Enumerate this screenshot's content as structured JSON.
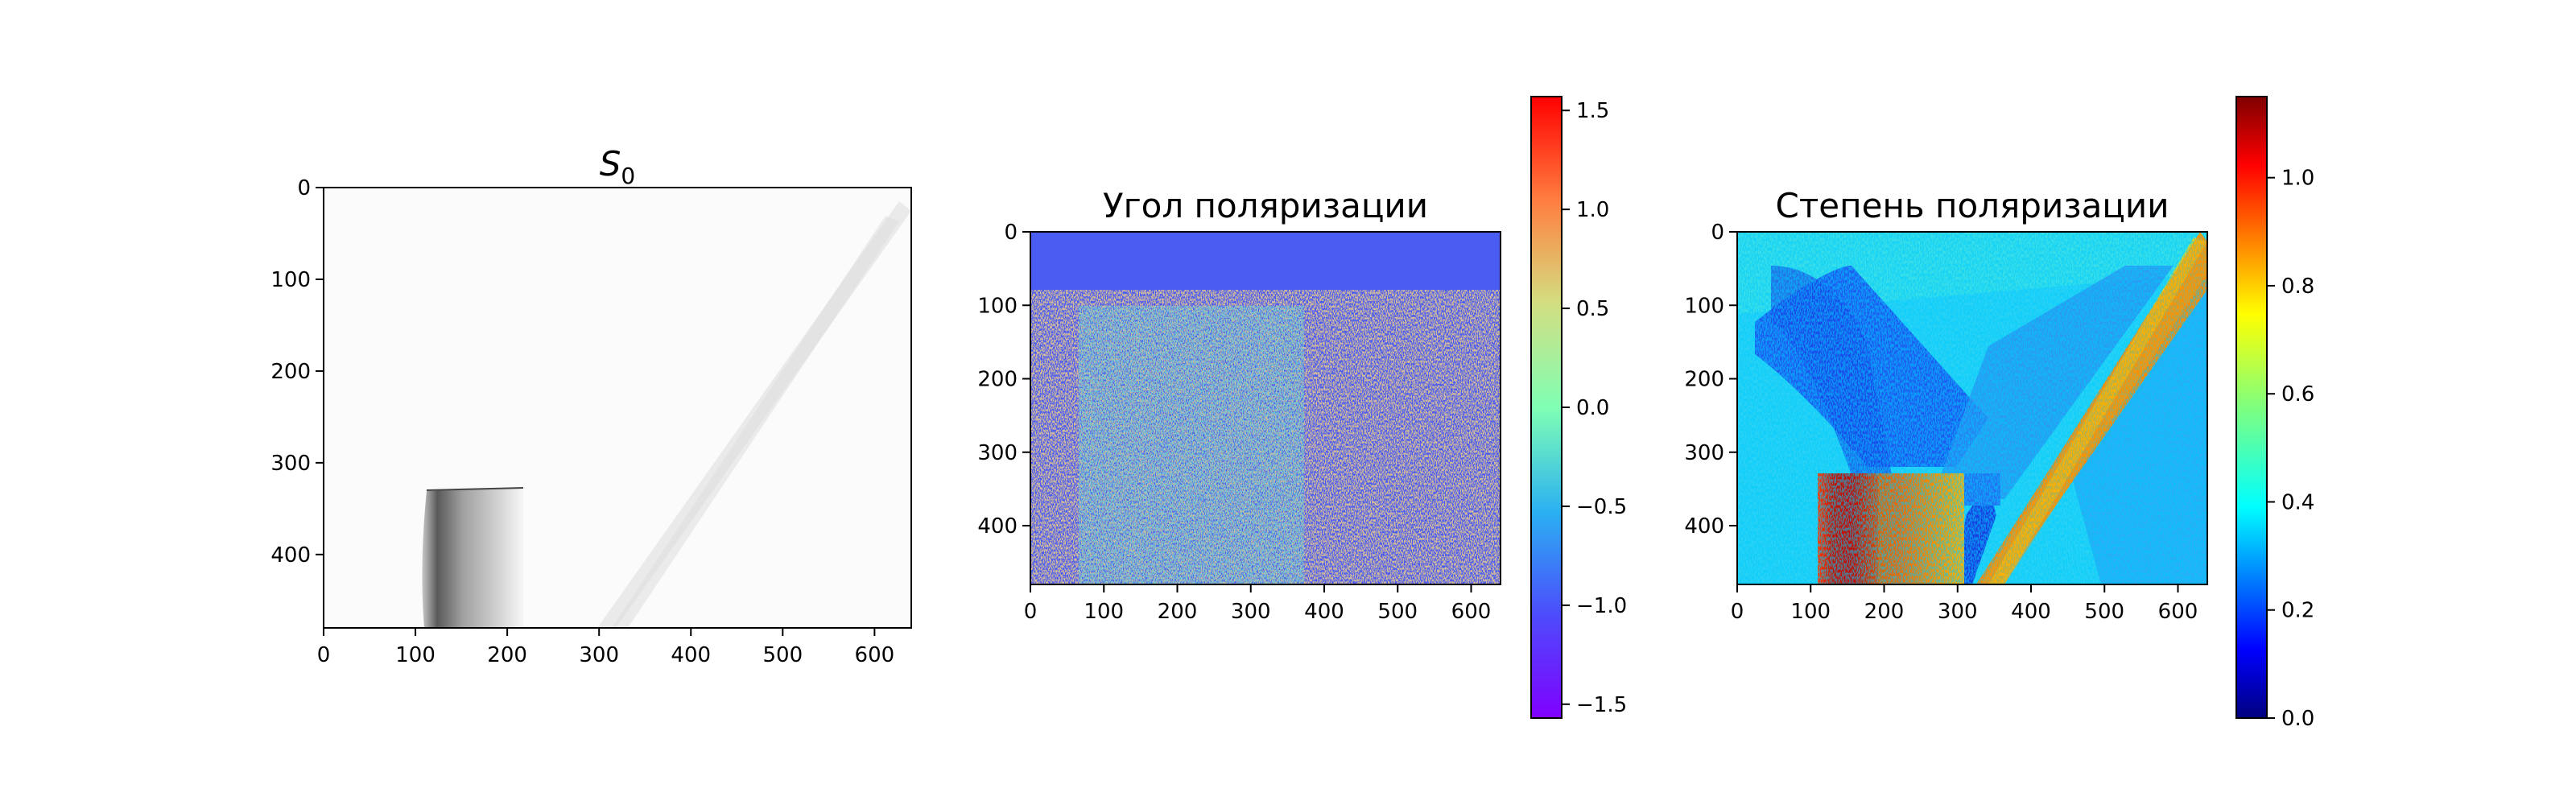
{
  "chart_data": [
    {
      "type": "heatmap",
      "title": "S",
      "title_subscript": "0",
      "colormap": "gray_r",
      "xlim": [
        0,
        640
      ],
      "ylim": [
        480,
        0
      ],
      "xticks": [
        0,
        100,
        200,
        300,
        400,
        500,
        600
      ],
      "yticks": [
        0,
        100,
        200,
        300,
        400
      ],
      "features": [
        {
          "kind": "dark_block",
          "x": [
            110,
            230
          ],
          "y": [
            330,
            480
          ]
        },
        {
          "kind": "faint_diagonal_band",
          "from": [
            640,
            10
          ],
          "to": [
            300,
            480
          ]
        }
      ]
    },
    {
      "type": "heatmap",
      "title": "Угол поляризации",
      "colormap": "rainbow",
      "xlim": [
        0,
        640
      ],
      "ylim": [
        480,
        0
      ],
      "xticks": [
        0,
        100,
        200,
        300,
        400,
        500,
        600
      ],
      "yticks": [
        0,
        100,
        200,
        300,
        400
      ],
      "background_value": -1.1,
      "colorbar": {
        "min": -1.57,
        "max": 1.57,
        "ticks": [
          1.5,
          1.0,
          0.5,
          0.0,
          -0.5,
          -1.0,
          -1.5
        ],
        "tick_labels": [
          "1.5",
          "1.0",
          "0.5",
          "0.0",
          "−0.5",
          "−1.0",
          "−1.5"
        ]
      }
    },
    {
      "type": "heatmap",
      "title": "Степень поляризации",
      "colormap": "jet",
      "xlim": [
        0,
        640
      ],
      "ylim": [
        480,
        0
      ],
      "xticks": [
        0,
        100,
        200,
        300,
        400,
        500,
        600
      ],
      "yticks": [
        0,
        100,
        200,
        300,
        400
      ],
      "background_value": 0.37,
      "colorbar": {
        "min": 0.0,
        "max": 1.15,
        "ticks": [
          1.0,
          0.8,
          0.6,
          0.4,
          0.2,
          0.0
        ],
        "tick_labels": [
          "1.0",
          "0.8",
          "0.6",
          "0.4",
          "0.2",
          "0.0"
        ]
      }
    }
  ]
}
